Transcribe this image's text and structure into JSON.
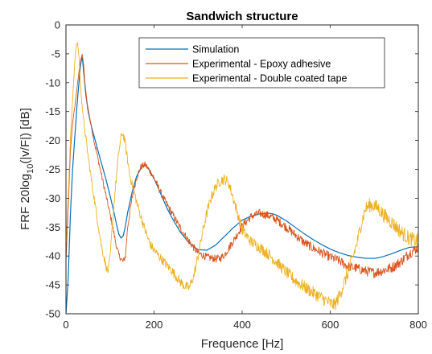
{
  "chart_data": {
    "type": "line",
    "title": "Sandwich structure",
    "xlabel": "Frequence [Hz]",
    "ylabel_parts": [
      "FRF 20log",
      "10",
      "(|v/F|) [dB]"
    ],
    "xlim": [
      0,
      800
    ],
    "ylim": [
      -50,
      0
    ],
    "xticks": [
      0,
      200,
      400,
      600,
      800
    ],
    "yticks": [
      0,
      -5,
      -10,
      -15,
      -20,
      -25,
      -30,
      -35,
      -40,
      -45,
      -50
    ],
    "grid": false,
    "legend_position": "top-right",
    "series": [
      {
        "name": "Simulation",
        "color": "#0072BD",
        "x": [
          0,
          5,
          10,
          15,
          20,
          25,
          30,
          33,
          36,
          38,
          40,
          42,
          45,
          50,
          55,
          60,
          70,
          80,
          90,
          100,
          110,
          115,
          120,
          125,
          130,
          135,
          140,
          150,
          160,
          170,
          175,
          180,
          185,
          190,
          200,
          210,
          220,
          230,
          240,
          260,
          280,
          300,
          320,
          340,
          360,
          380,
          400,
          420,
          440,
          460,
          470,
          480,
          500,
          520,
          540,
          560,
          580,
          600,
          620,
          640,
          660,
          680,
          700,
          710,
          720,
          740,
          760,
          780,
          800
        ],
        "y": [
          -50,
          -44,
          -33,
          -25,
          -19.5,
          -14,
          -9.5,
          -7,
          -5.6,
          -6.3,
          -8,
          -9.5,
          -12,
          -14.8,
          -16.7,
          -18.2,
          -21,
          -23.8,
          -26.5,
          -29.5,
          -32.8,
          -34.6,
          -36.2,
          -36.9,
          -36.5,
          -34.8,
          -32.5,
          -29,
          -26.3,
          -24.8,
          -24.4,
          -24.3,
          -24.7,
          -25.2,
          -26.6,
          -28.3,
          -30.1,
          -31.8,
          -33.3,
          -35.9,
          -37.8,
          -38.9,
          -39,
          -38.1,
          -36.6,
          -35.1,
          -33.8,
          -33.1,
          -32.7,
          -32.6,
          -32.7,
          -33,
          -33.9,
          -35,
          -36.1,
          -37.1,
          -38,
          -38.8,
          -39.4,
          -39.9,
          -40.2,
          -40.4,
          -40.4,
          -40.3,
          -40.1,
          -39.6,
          -39,
          -38.5,
          -38.4
        ]
      },
      {
        "name": "Experimental - Epoxy adhesive",
        "color": "#D95319",
        "x": [
          0,
          5,
          10,
          15,
          20,
          25,
          30,
          34,
          37,
          40,
          43,
          48,
          55,
          65,
          75,
          85,
          95,
          105,
          115,
          120,
          125,
          130,
          135,
          140,
          150,
          160,
          170,
          180,
          190,
          200,
          220,
          240,
          260,
          280,
          300,
          320,
          340,
          350,
          360,
          380,
          400,
          420,
          440,
          460,
          480,
          500,
          520,
          540,
          560,
          580,
          600,
          620,
          640,
          660,
          680,
          700,
          720,
          740,
          760,
          780,
          800
        ],
        "y": [
          -41,
          -32,
          -22,
          -17,
          -14.2,
          -11,
          -7.8,
          -5.9,
          -5.1,
          -6.8,
          -10,
          -13.5,
          -16.5,
          -20.5,
          -24,
          -27.5,
          -31,
          -34.5,
          -38.5,
          -39.8,
          -40.5,
          -41,
          -40,
          -35,
          -30,
          -26.5,
          -24.6,
          -24.2,
          -25.2,
          -26.5,
          -29.8,
          -32.5,
          -35.2,
          -37.5,
          -39.5,
          -40.2,
          -40.5,
          -40.4,
          -39.8,
          -37.4,
          -34.8,
          -33.2,
          -32.6,
          -33,
          -33.8,
          -35,
          -36.3,
          -37.6,
          -38.6,
          -39.4,
          -40.2,
          -40.8,
          -41.8,
          -42.1,
          -42.6,
          -42.9,
          -42.5,
          -42,
          -41,
          -39.5,
          -38.5
        ]
      },
      {
        "name": "Experimental - Double coated tape",
        "color": "#EDB120",
        "x": [
          0,
          5,
          10,
          15,
          18,
          20,
          22,
          24,
          26,
          28,
          30,
          33,
          36,
          40,
          45,
          50,
          60,
          70,
          80,
          90,
          95,
          100,
          105,
          110,
          115,
          120,
          125,
          128,
          132,
          136,
          140,
          145,
          150,
          160,
          170,
          180,
          190,
          200,
          220,
          240,
          260,
          270,
          280,
          290,
          300,
          310,
          320,
          330,
          340,
          350,
          355,
          360,
          365,
          370,
          380,
          390,
          400,
          420,
          440,
          460,
          480,
          500,
          520,
          540,
          560,
          580,
          600,
          610,
          620,
          640,
          660,
          670,
          680,
          690,
          700,
          710,
          720,
          740,
          760,
          780,
          800
        ],
        "y": [
          -38,
          -30,
          -20,
          -13,
          -9,
          -6.5,
          -4.5,
          -3.4,
          -3.1,
          -4.2,
          -6,
          -10.5,
          -13.5,
          -16.5,
          -19.5,
          -22.5,
          -28,
          -33,
          -38,
          -41.5,
          -42.8,
          -40.5,
          -35,
          -30,
          -26,
          -22,
          -19.5,
          -18.7,
          -19.5,
          -21.2,
          -23.5,
          -26,
          -27.5,
          -30.5,
          -33.2,
          -35.6,
          -37.8,
          -39,
          -40.8,
          -42.5,
          -44.5,
          -45.2,
          -45.5,
          -43.5,
          -40,
          -36,
          -32.5,
          -29.8,
          -28,
          -27,
          -26.8,
          -26.7,
          -27,
          -27.5,
          -30,
          -32.8,
          -35.5,
          -37.5,
          -38.5,
          -39.7,
          -41.2,
          -42.8,
          -44.2,
          -45.3,
          -46.3,
          -47.2,
          -48.2,
          -48.5,
          -47,
          -43,
          -38,
          -34.5,
          -31.8,
          -31.2,
          -31.3,
          -31.8,
          -32.8,
          -34.2,
          -35.8,
          -37,
          -37.5
        ]
      }
    ]
  }
}
